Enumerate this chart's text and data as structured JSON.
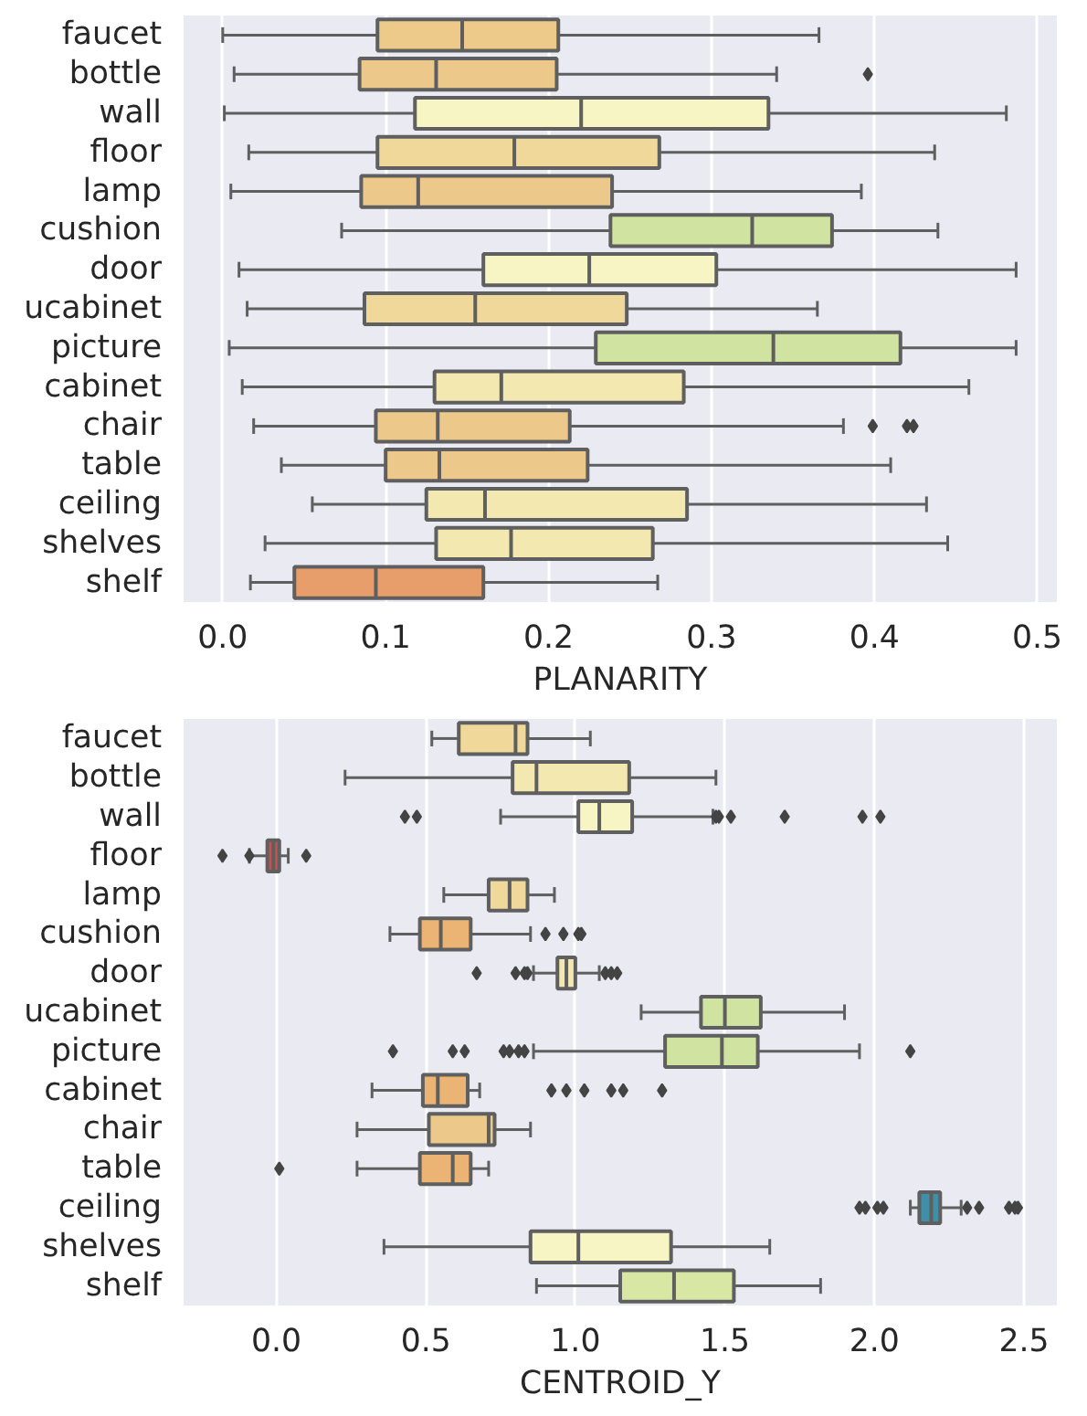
{
  "chart_data": [
    {
      "type": "box",
      "orientation": "horizontal",
      "xlabel": "PLANARITY",
      "xlim": [
        -0.024,
        0.512
      ],
      "xticks": [
        {
          "value": 0,
          "label": "0.0"
        },
        0.1,
        0.2,
        0.3,
        0.4,
        0.5
      ],
      "grid": "x",
      "categories": [
        "faucet",
        "bottle",
        "wall",
        "floor",
        "lamp",
        "cushion",
        "door",
        "ucabinet",
        "picture",
        "cabinet",
        "chair",
        "table",
        "ceiling",
        "shelves",
        "shelf"
      ],
      "colors": [
        "#edc98a",
        "#ecc88a",
        "#f6f5c3",
        "#efd89a",
        "#ecc88a",
        "#d0e3a0",
        "#f6f5c3",
        "#efd89a",
        "#d0e3a0",
        "#f3e9b0",
        "#ecc88a",
        "#ecc88a",
        "#f3e9b0",
        "#f3e9b0",
        "#e89e6a"
      ],
      "boxes": [
        {
          "low": 0.0,
          "q1": 0.095,
          "median": 0.147,
          "q3": 0.206,
          "high": 0.366
        },
        {
          "low": 0.007,
          "q1": 0.084,
          "median": 0.131,
          "q3": 0.205,
          "high": 0.34,
          "outliers": [
            0.396
          ]
        },
        {
          "low": 0.001,
          "q1": 0.118,
          "median": 0.22,
          "q3": 0.335,
          "high": 0.481
        },
        {
          "low": 0.016,
          "q1": 0.095,
          "median": 0.179,
          "q3": 0.268,
          "high": 0.437
        },
        {
          "low": 0.005,
          "q1": 0.085,
          "median": 0.12,
          "q3": 0.239,
          "high": 0.392
        },
        {
          "low": 0.073,
          "q1": 0.238,
          "median": 0.325,
          "q3": 0.374,
          "high": 0.439
        },
        {
          "low": 0.01,
          "q1": 0.16,
          "median": 0.225,
          "q3": 0.303,
          "high": 0.487
        },
        {
          "low": 0.015,
          "q1": 0.087,
          "median": 0.155,
          "q3": 0.248,
          "high": 0.365
        },
        {
          "low": 0.004,
          "q1": 0.229,
          "median": 0.338,
          "q3": 0.416,
          "high": 0.487
        },
        {
          "low": 0.012,
          "q1": 0.13,
          "median": 0.171,
          "q3": 0.283,
          "high": 0.458
        },
        {
          "low": 0.019,
          "q1": 0.094,
          "median": 0.132,
          "q3": 0.213,
          "high": 0.381,
          "outliers": [
            0.399,
            0.42,
            0.424
          ]
        },
        {
          "low": 0.036,
          "q1": 0.1,
          "median": 0.133,
          "q3": 0.224,
          "high": 0.41
        },
        {
          "low": 0.055,
          "q1": 0.125,
          "median": 0.161,
          "q3": 0.285,
          "high": 0.432
        },
        {
          "low": 0.026,
          "q1": 0.131,
          "median": 0.177,
          "q3": 0.264,
          "high": 0.445
        },
        {
          "low": 0.017,
          "q1": 0.044,
          "median": 0.094,
          "q3": 0.16,
          "high": 0.267
        }
      ]
    },
    {
      "type": "box",
      "orientation": "horizontal",
      "xlabel": "CENTROID_Y",
      "xlim": [
        -0.31,
        2.61
      ],
      "xticks": [
        {
          "value": 0,
          "label": "0.0"
        },
        0.5,
        {
          "value": 1,
          "label": "1.0"
        },
        1.5,
        {
          "value": 2,
          "label": "2.0"
        },
        2.5
      ],
      "grid": "x",
      "categories": [
        "faucet",
        "bottle",
        "wall",
        "floor",
        "lamp",
        "cushion",
        "door",
        "ucabinet",
        "picture",
        "cabinet",
        "chair",
        "table",
        "ceiling",
        "shelves",
        "shelf"
      ],
      "colors": [
        "#efd89a",
        "#f3e9b0",
        "#f6f5c3",
        "#c9504e",
        "#efd89a",
        "#ebb475",
        "#f3e9b0",
        "#d0e3a0",
        "#d0e3a0",
        "#ebb475",
        "#ecc88a",
        "#ebb475",
        "#3f8fa8",
        "#f6f5c3",
        "#d8e8a4"
      ],
      "boxes": [
        {
          "low": 0.52,
          "q1": 0.61,
          "median": 0.8,
          "q3": 0.84,
          "high": 1.05
        },
        {
          "low": 0.23,
          "q1": 0.79,
          "median": 0.87,
          "q3": 1.18,
          "high": 1.47
        },
        {
          "low": 0.75,
          "q1": 1.01,
          "median": 1.08,
          "q3": 1.19,
          "high": 1.46,
          "outliers": [
            0.43,
            0.47,
            1.47,
            1.48,
            1.52,
            1.7,
            1.96,
            2.02
          ]
        },
        {
          "low": -0.09,
          "q1": -0.03,
          "median": -0.01,
          "q3": 0.01,
          "high": 0.04,
          "outliers": [
            -0.18,
            -0.09,
            0.1
          ]
        },
        {
          "low": 0.56,
          "q1": 0.71,
          "median": 0.78,
          "q3": 0.84,
          "high": 0.93
        },
        {
          "low": 0.38,
          "q1": 0.48,
          "median": 0.55,
          "q3": 0.65,
          "high": 0.85,
          "outliers": [
            0.9,
            0.96,
            1.01,
            1.02
          ]
        },
        {
          "low": 0.86,
          "q1": 0.94,
          "median": 0.97,
          "q3": 1.0,
          "high": 1.08,
          "outliers": [
            0.67,
            0.8,
            0.83,
            0.84,
            1.1,
            1.12,
            1.14
          ]
        },
        {
          "low": 1.22,
          "q1": 1.42,
          "median": 1.5,
          "q3": 1.62,
          "high": 1.9
        },
        {
          "low": 0.86,
          "q1": 1.3,
          "median": 1.49,
          "q3": 1.61,
          "high": 1.95,
          "outliers": [
            0.39,
            0.59,
            0.63,
            0.76,
            0.78,
            0.81,
            0.83,
            2.12
          ]
        },
        {
          "low": 0.32,
          "q1": 0.49,
          "median": 0.54,
          "q3": 0.64,
          "high": 0.68,
          "outliers": [
            0.92,
            0.97,
            1.03,
            1.12,
            1.16,
            1.29
          ]
        },
        {
          "low": 0.27,
          "q1": 0.51,
          "median": 0.71,
          "q3": 0.73,
          "high": 0.85
        },
        {
          "low": 0.27,
          "q1": 0.48,
          "median": 0.59,
          "q3": 0.65,
          "high": 0.71,
          "outliers": [
            0.01
          ]
        },
        {
          "low": 2.12,
          "q1": 2.15,
          "median": 2.19,
          "q3": 2.22,
          "high": 2.29,
          "outliers": [
            1.95,
            1.97,
            2.01,
            2.03,
            2.31,
            2.35,
            2.45,
            2.47,
            2.48
          ]
        },
        {
          "low": 0.36,
          "q1": 0.85,
          "median": 1.01,
          "q3": 1.32,
          "high": 1.65
        },
        {
          "low": 0.87,
          "q1": 1.15,
          "median": 1.33,
          "q3": 1.53,
          "high": 1.82
        }
      ]
    }
  ]
}
